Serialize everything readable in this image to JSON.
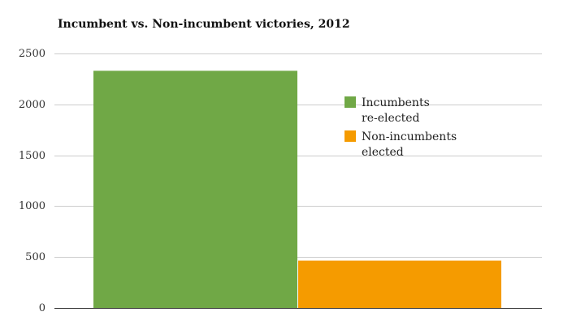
{
  "chart_data": {
    "type": "bar",
    "title": "Incumbent vs. Non-incumbent victories, 2012",
    "xlabel": "",
    "ylabel": "",
    "ylim": [
      0,
      2500
    ],
    "yticks": [
      0,
      500,
      1000,
      1500,
      2000,
      2500
    ],
    "grid": true,
    "legend_position": "right",
    "series": [
      {
        "name": "Incumbents re-elected",
        "legend_lines": [
          "Incumbents",
          "re-elected"
        ],
        "value": 2330,
        "color": "#70a846"
      },
      {
        "name": "Non-incumbents elected",
        "legend_lines": [
          "Non-incumbents",
          "elected"
        ],
        "value": 465,
        "color": "#f59b00"
      }
    ]
  }
}
